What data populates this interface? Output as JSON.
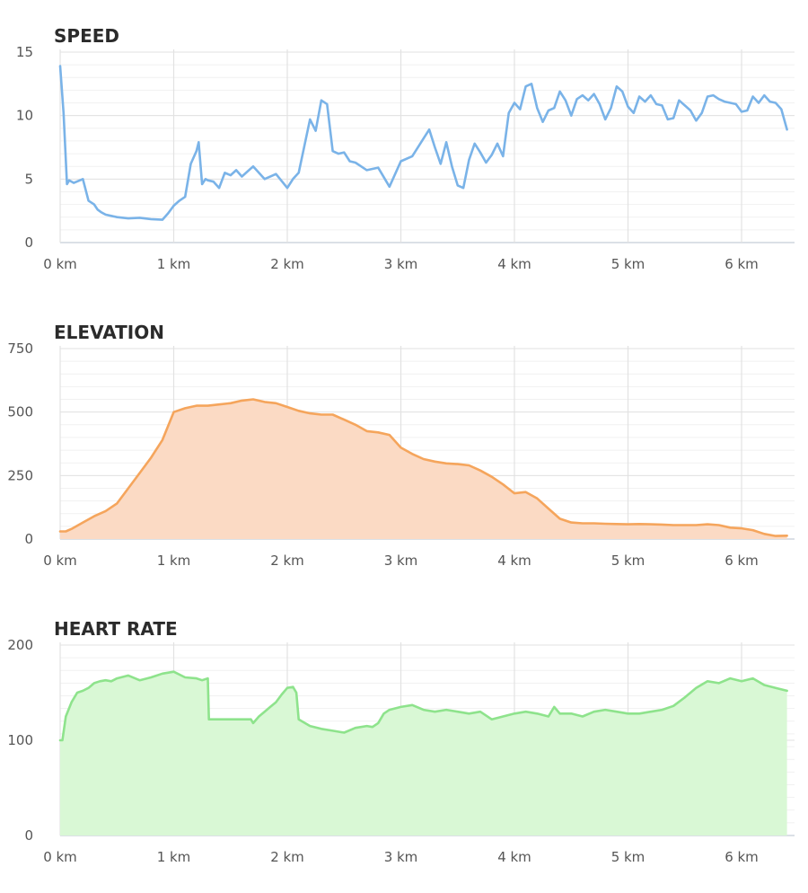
{
  "chart_data": [
    {
      "type": "line",
      "title": "SPEED",
      "xlabel": "",
      "ylabel": "",
      "xlim": [
        0,
        6.5
      ],
      "ylim": [
        0,
        15
      ],
      "x_ticks": [
        0,
        1,
        2,
        3,
        4,
        5,
        6
      ],
      "x_tick_labels": [
        "0 km",
        "1 km",
        "2 km",
        "3 km",
        "4 km",
        "5 km",
        "6 km"
      ],
      "y_ticks": [
        0,
        5,
        10,
        15
      ],
      "y_tick_labels": [
        "0",
        "5",
        "10",
        "15"
      ],
      "grid": true,
      "color": "#7ab3e8",
      "fill": false,
      "series": [
        {
          "x": [
            0.0,
            0.03,
            0.06,
            0.08,
            0.12,
            0.2,
            0.25,
            0.3,
            0.33,
            0.36,
            0.4,
            0.45,
            0.5,
            0.6,
            0.7,
            0.8,
            0.9,
            0.95,
            1.0,
            1.05,
            1.1,
            1.15,
            1.2,
            1.22,
            1.25,
            1.28,
            1.3,
            1.35,
            1.4,
            1.45,
            1.5,
            1.55,
            1.6,
            1.7,
            1.8,
            1.9,
            2.0,
            2.05,
            2.1,
            2.15,
            2.2,
            2.25,
            2.3,
            2.35,
            2.4,
            2.45,
            2.5,
            2.55,
            2.6,
            2.65,
            2.7,
            2.8,
            2.9,
            3.0,
            3.1,
            3.2,
            3.25,
            3.3,
            3.35,
            3.4,
            3.45,
            3.5,
            3.55,
            3.6,
            3.65,
            3.7,
            3.75,
            3.8,
            3.85,
            3.9,
            3.95,
            4.0,
            4.05,
            4.1,
            4.15,
            4.2,
            4.25,
            4.3,
            4.35,
            4.4,
            4.45,
            4.5,
            4.55,
            4.6,
            4.65,
            4.7,
            4.75,
            4.8,
            4.85,
            4.9,
            4.95,
            5.0,
            5.05,
            5.1,
            5.15,
            5.2,
            5.25,
            5.3,
            5.35,
            5.4,
            5.45,
            5.5,
            5.55,
            5.6,
            5.65,
            5.7,
            5.75,
            5.8,
            5.85,
            5.9,
            5.95,
            6.0,
            6.05,
            6.1,
            6.15,
            6.2,
            6.25,
            6.3,
            6.35,
            6.4
          ],
          "values": [
            13.9,
            10.2,
            4.6,
            4.9,
            4.7,
            5.0,
            3.3,
            3.0,
            2.6,
            2.4,
            2.2,
            2.1,
            2.0,
            1.9,
            1.95,
            1.85,
            1.8,
            2.3,
            2.9,
            3.3,
            3.6,
            6.2,
            7.2,
            7.9,
            4.6,
            5.0,
            4.9,
            4.8,
            4.3,
            5.5,
            5.3,
            5.7,
            5.2,
            6.0,
            5.0,
            5.4,
            4.3,
            5.0,
            5.5,
            7.6,
            9.7,
            8.8,
            11.2,
            10.9,
            7.2,
            7.0,
            7.1,
            6.4,
            6.3,
            6.0,
            5.7,
            5.9,
            4.4,
            6.4,
            6.8,
            8.2,
            8.9,
            7.5,
            6.2,
            7.9,
            6.0,
            4.5,
            4.3,
            6.5,
            7.8,
            7.1,
            6.3,
            6.9,
            7.8,
            6.8,
            10.2,
            11.0,
            10.5,
            12.3,
            12.5,
            10.6,
            9.5,
            10.4,
            10.6,
            11.9,
            11.2,
            10.0,
            11.3,
            11.6,
            11.2,
            11.7,
            10.9,
            9.7,
            10.6,
            12.3,
            11.9,
            10.7,
            10.2,
            11.5,
            11.1,
            11.6,
            10.9,
            10.8,
            9.7,
            9.8,
            11.2,
            10.8,
            10.4,
            9.6,
            10.2,
            11.5,
            11.6,
            11.3,
            11.1,
            11.0,
            10.9,
            10.3,
            10.4,
            11.5,
            11.0,
            11.6,
            11.1,
            11.0,
            10.5,
            8.9
          ]
        }
      ]
    },
    {
      "type": "area",
      "title": "ELEVATION",
      "xlabel": "",
      "ylabel": "",
      "xlim": [
        0,
        6.5
      ],
      "ylim": [
        0,
        750
      ],
      "x_ticks": [
        0,
        1,
        2,
        3,
        4,
        5,
        6
      ],
      "x_tick_labels": [
        "0 km",
        "1 km",
        "2 km",
        "3 km",
        "4 km",
        "5 km",
        "6 km"
      ],
      "y_ticks": [
        0,
        250,
        500,
        750
      ],
      "y_tick_labels": [
        "0",
        "250",
        "500",
        "750"
      ],
      "grid": true,
      "color": "#f5a55c",
      "fill_color": "#fbdac4",
      "fill": true,
      "series": [
        {
          "x": [
            0.0,
            0.05,
            0.1,
            0.2,
            0.3,
            0.4,
            0.5,
            0.6,
            0.7,
            0.8,
            0.9,
            1.0,
            1.1,
            1.2,
            1.3,
            1.4,
            1.5,
            1.6,
            1.7,
            1.8,
            1.9,
            2.0,
            2.1,
            2.2,
            2.3,
            2.4,
            2.5,
            2.6,
            2.7,
            2.8,
            2.9,
            3.0,
            3.1,
            3.2,
            3.3,
            3.4,
            3.5,
            3.6,
            3.7,
            3.8,
            3.9,
            4.0,
            4.1,
            4.2,
            4.3,
            4.4,
            4.5,
            4.6,
            4.7,
            4.8,
            4.9,
            5.0,
            5.1,
            5.2,
            5.3,
            5.4,
            5.5,
            5.6,
            5.7,
            5.8,
            5.9,
            6.0,
            6.1,
            6.2,
            6.3,
            6.4
          ],
          "values": [
            30,
            30,
            40,
            65,
            90,
            110,
            140,
            200,
            260,
            320,
            390,
            500,
            515,
            525,
            525,
            530,
            535,
            545,
            550,
            540,
            535,
            520,
            505,
            495,
            490,
            490,
            470,
            450,
            425,
            420,
            410,
            360,
            335,
            315,
            305,
            298,
            295,
            290,
            270,
            245,
            215,
            180,
            185,
            160,
            120,
            80,
            65,
            62,
            62,
            60,
            59,
            58,
            59,
            58,
            57,
            55,
            55,
            55,
            58,
            55,
            45,
            42,
            35,
            20,
            12,
            13
          ]
        }
      ]
    },
    {
      "type": "area",
      "title": "HEART RATE",
      "xlabel": "",
      "ylabel": "",
      "xlim": [
        0,
        6.5
      ],
      "ylim": [
        0,
        200
      ],
      "x_ticks": [
        0,
        1,
        2,
        3,
        4,
        5,
        6
      ],
      "x_tick_labels": [
        "0 km",
        "1 km",
        "2 km",
        "3 km",
        "4 km",
        "5 km",
        "6 km"
      ],
      "y_ticks": [
        0,
        100,
        200
      ],
      "y_tick_labels": [
        "0",
        "100",
        "200"
      ],
      "grid": true,
      "color": "#8ee38c",
      "fill_color": "#d9f8d5",
      "fill": true,
      "series": [
        {
          "x": [
            0.0,
            0.02,
            0.05,
            0.1,
            0.15,
            0.2,
            0.25,
            0.3,
            0.35,
            0.4,
            0.45,
            0.5,
            0.6,
            0.7,
            0.8,
            0.9,
            1.0,
            1.1,
            1.2,
            1.25,
            1.3,
            1.31,
            1.4,
            1.5,
            1.6,
            1.68,
            1.7,
            1.75,
            1.8,
            1.85,
            1.9,
            1.95,
            2.0,
            2.05,
            2.08,
            2.1,
            2.2,
            2.3,
            2.4,
            2.5,
            2.6,
            2.7,
            2.75,
            2.8,
            2.85,
            2.9,
            3.0,
            3.1,
            3.2,
            3.3,
            3.4,
            3.5,
            3.6,
            3.7,
            3.8,
            3.9,
            4.0,
            4.1,
            4.2,
            4.3,
            4.35,
            4.4,
            4.5,
            4.6,
            4.7,
            4.8,
            4.9,
            5.0,
            5.1,
            5.2,
            5.3,
            5.4,
            5.5,
            5.6,
            5.7,
            5.8,
            5.9,
            6.0,
            6.1,
            6.2,
            6.3,
            6.4
          ],
          "values": [
            100,
            100,
            125,
            140,
            150,
            152,
            155,
            160,
            162,
            163,
            162,
            165,
            168,
            163,
            166,
            170,
            172,
            166,
            165,
            163,
            165,
            122,
            122,
            122,
            122,
            122,
            118,
            125,
            130,
            135,
            140,
            148,
            155,
            156,
            150,
            122,
            115,
            112,
            110,
            108,
            113,
            115,
            114,
            118,
            128,
            132,
            135,
            137,
            132,
            130,
            132,
            130,
            128,
            130,
            122,
            125,
            128,
            130,
            128,
            125,
            135,
            128,
            128,
            125,
            130,
            132,
            130,
            128,
            128,
            130,
            132,
            136,
            145,
            155,
            162,
            160,
            165,
            162,
            165,
            158,
            155,
            152
          ]
        }
      ]
    }
  ]
}
